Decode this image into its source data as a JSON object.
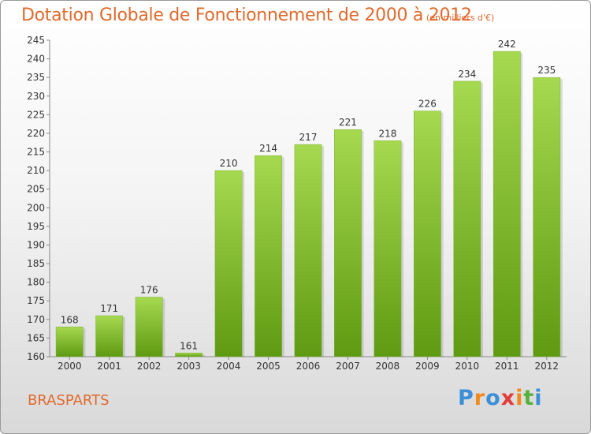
{
  "header": {
    "title": "Dotation Globale de Fonctionnement de 2000 à 2012",
    "subtitle": "(en milliers d'€)"
  },
  "commune": "BRASPARTS",
  "logo": {
    "letters": [
      "P",
      "r",
      "o",
      "x",
      "i",
      "t",
      "i"
    ],
    "colors": [
      "#3b8fd9",
      "#f08a1e",
      "#3b8fd9",
      "#e23b3b",
      "#f08a1e",
      "#56b13c",
      "#3b8fd9"
    ]
  },
  "colors": {
    "bar_light": "#a6d94f",
    "bar_dark": "#5e9a12",
    "accent": "#e06a2c"
  },
  "chart_data": {
    "type": "bar",
    "categories": [
      "2000",
      "2001",
      "2002",
      "2003",
      "2004",
      "2005",
      "2006",
      "2007",
      "2008",
      "2009",
      "2010",
      "2011",
      "2012"
    ],
    "values": [
      168,
      171,
      176,
      161,
      210,
      214,
      217,
      221,
      218,
      226,
      234,
      242,
      235
    ],
    "title": "Dotation Globale de Fonctionnement de 2000 à 2012",
    "xlabel": "",
    "ylabel": "",
    "ylim": [
      160,
      245
    ],
    "ytick_step": 5,
    "grid": false,
    "legend": "none"
  }
}
